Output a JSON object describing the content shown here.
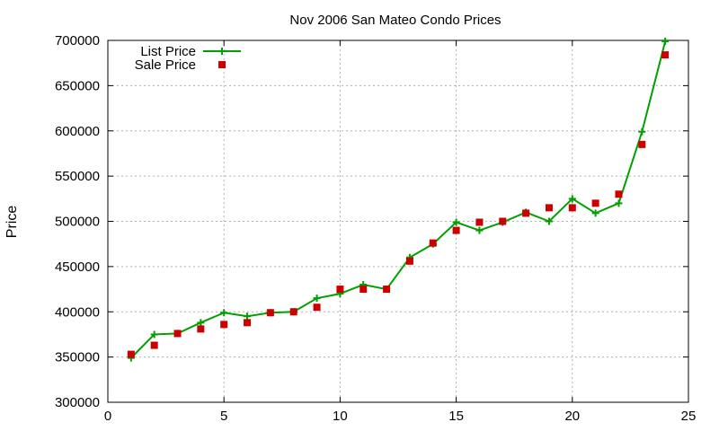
{
  "chart_data": {
    "type": "line",
    "title": "Nov 2006 San Mateo Condo Prices",
    "xlabel": "",
    "ylabel": "Price",
    "xlim": [
      0,
      25
    ],
    "ylim": [
      300000,
      700000
    ],
    "xticks": [
      0,
      5,
      10,
      15,
      20,
      25
    ],
    "yticks": [
      300000,
      350000,
      400000,
      450000,
      500000,
      550000,
      600000,
      650000,
      700000
    ],
    "grid": true,
    "legend_position": "top-left",
    "series": [
      {
        "name": "List Price",
        "style": "line-with-plus-markers",
        "color": "#00a000",
        "x": [
          1,
          2,
          3,
          4,
          5,
          6,
          7,
          8,
          9,
          10,
          11,
          12,
          13,
          14,
          15,
          16,
          17,
          18,
          19,
          20,
          21,
          22,
          23,
          24
        ],
        "y": [
          349000,
          375000,
          376000,
          388000,
          399000,
          395000,
          399000,
          400000,
          415000,
          420000,
          430000,
          425000,
          460000,
          475000,
          499000,
          490000,
          499000,
          510000,
          500000,
          525000,
          509000,
          520000,
          599000,
          699000
        ]
      },
      {
        "name": "Sale Price",
        "style": "square-markers",
        "color": "#cc0000",
        "x": [
          1,
          2,
          3,
          4,
          5,
          6,
          7,
          8,
          9,
          10,
          11,
          12,
          13,
          14,
          15,
          16,
          17,
          18,
          19,
          20,
          21,
          22,
          23,
          24
        ],
        "y": [
          353000,
          363000,
          376000,
          381000,
          386000,
          388000,
          399000,
          400000,
          405000,
          425000,
          425000,
          425000,
          456000,
          476000,
          490000,
          499000,
          500000,
          509000,
          515000,
          515000,
          520000,
          530000,
          585000,
          684000
        ]
      }
    ]
  }
}
